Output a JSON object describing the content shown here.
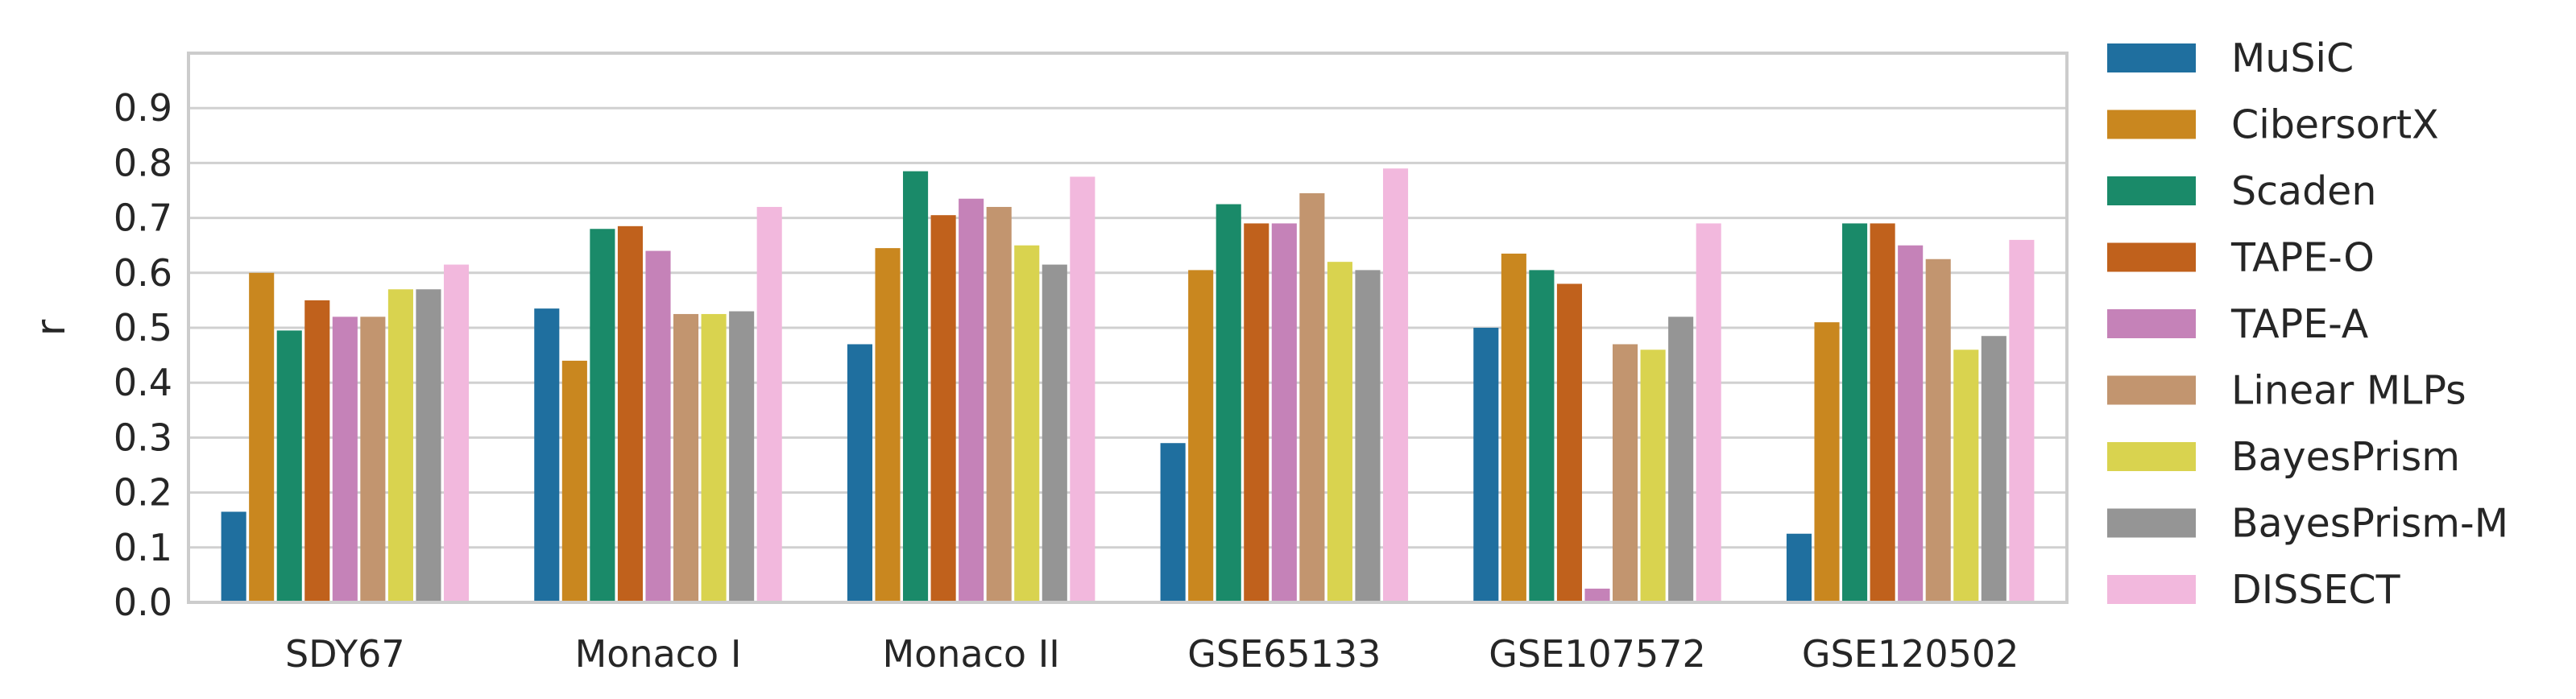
{
  "chart_data": {
    "type": "bar",
    "title": "",
    "xlabel": "",
    "ylabel": "r",
    "ylim": [
      0,
      1.0
    ],
    "yticks": [
      "0.0",
      "0.1",
      "0.2",
      "0.3",
      "0.4",
      "0.5",
      "0.6",
      "0.7",
      "0.8",
      "0.9"
    ],
    "grid": true,
    "legend_position": "right, outside plot",
    "categories": [
      "SDY67",
      "Monaco I",
      "Monaco II",
      "GSE65133",
      "GSE107572",
      "GSE120502"
    ],
    "series": [
      {
        "name": "MuSiC",
        "color": "#1f6f9f",
        "values": [
          0.165,
          0.535,
          0.47,
          0.29,
          0.5,
          0.125
        ]
      },
      {
        "name": "CibersortX",
        "color": "#c9871f",
        "values": [
          0.6,
          0.44,
          0.645,
          0.605,
          0.635,
          0.51
        ]
      },
      {
        "name": "Scaden",
        "color": "#1a8a69",
        "values": [
          0.495,
          0.68,
          0.785,
          0.725,
          0.605,
          0.69
        ]
      },
      {
        "name": "TAPE-O",
        "color": "#c0611c",
        "values": [
          0.55,
          0.685,
          0.705,
          0.69,
          0.58,
          0.69
        ]
      },
      {
        "name": "TAPE-A",
        "color": "#c582b8",
        "values": [
          0.52,
          0.64,
          0.735,
          0.69,
          0.025,
          0.65
        ]
      },
      {
        "name": "Linear MLPs",
        "color": "#c2956f",
        "values": [
          0.52,
          0.525,
          0.72,
          0.745,
          0.47,
          0.625
        ]
      },
      {
        "name": "BayesPrism",
        "color": "#d9d34f",
        "values": [
          0.57,
          0.525,
          0.65,
          0.62,
          0.46,
          0.46
        ]
      },
      {
        "name": "BayesPrism-M",
        "color": "#959595",
        "values": [
          0.57,
          0.53,
          0.615,
          0.605,
          0.52,
          0.485
        ]
      },
      {
        "name": "DISSECT",
        "color": "#f2b8dd",
        "values": [
          0.615,
          0.72,
          0.775,
          0.79,
          0.69,
          0.66
        ]
      }
    ]
  }
}
